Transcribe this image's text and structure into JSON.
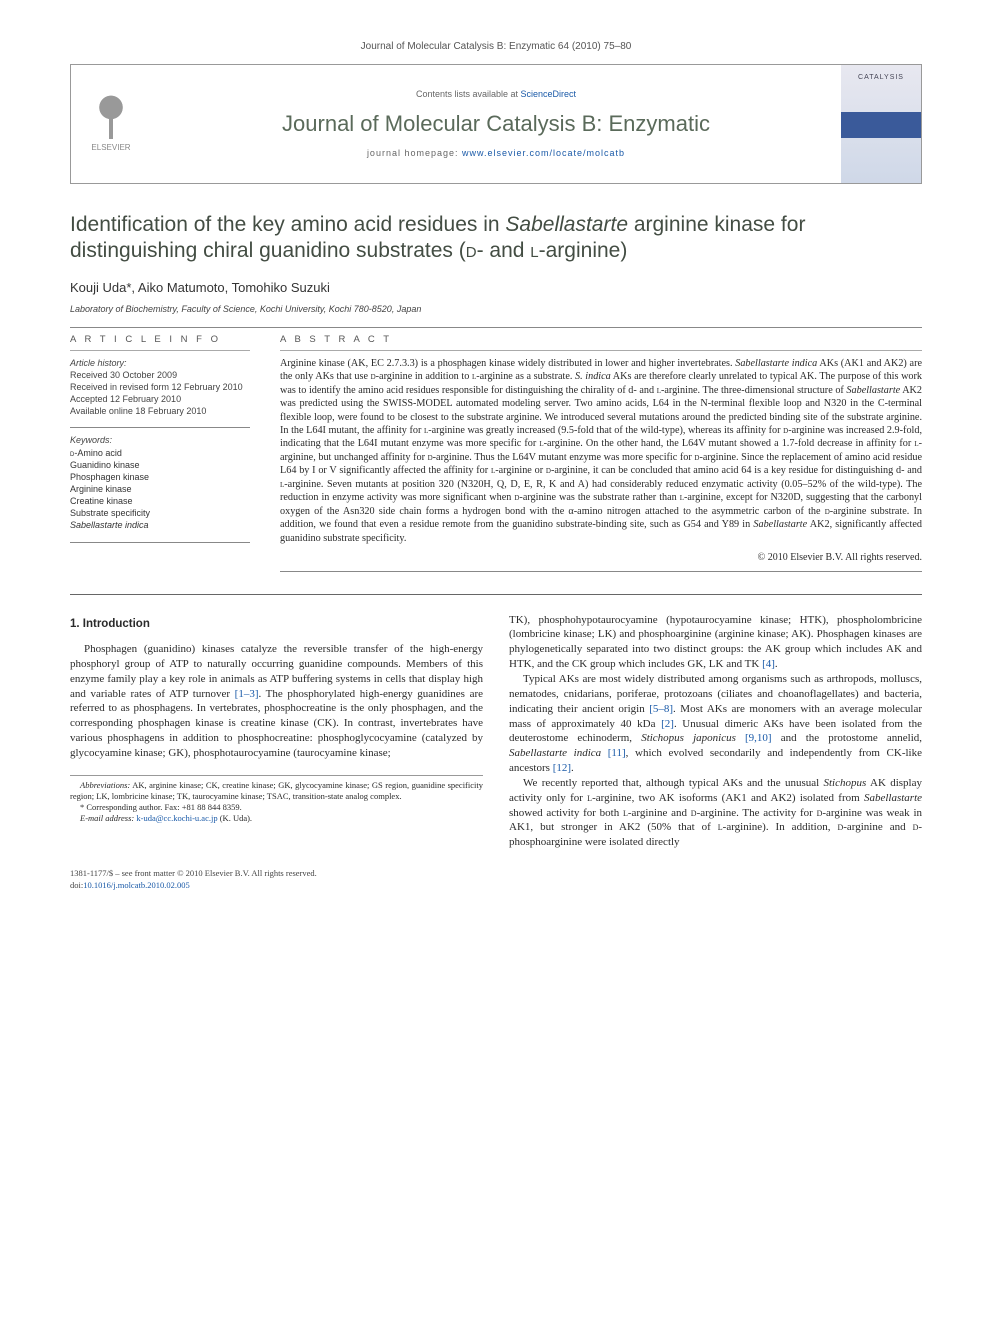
{
  "meta": {
    "running_head": "Journal of Molecular Catalysis B: Enzymatic 64 (2010) 75–80",
    "contents_prefix": "Contents lists available at ",
    "contents_link": "ScienceDirect",
    "journal_title": "Journal of Molecular Catalysis B: Enzymatic",
    "homepage_prefix": "journal homepage: ",
    "homepage_url": "www.elsevier.com/locate/molcatb",
    "elsevier": "ELSEVIER",
    "cover_label": "CATALYSIS"
  },
  "title": {
    "line1": "Identification of the key amino acid residues in ",
    "italic1": "Sabellastarte",
    "line2": " arginine kinase for distinguishing chiral guanidino substrates (",
    "sc1": "d",
    "line3": "- and ",
    "sc2": "l",
    "line4": "-arginine)"
  },
  "authors": "Kouji Uda*, Aiko Matumoto, Tomohiko Suzuki",
  "affiliation": "Laboratory of Biochemistry, Faculty of Science, Kochi University, Kochi 780-8520, Japan",
  "info": {
    "heading": "A R T I C L E   I N F O",
    "hist_label": "Article history:",
    "hist": [
      "Received 30 October 2009",
      "Received in revised form 12 February 2010",
      "Accepted 12 February 2010",
      "Available online 18 February 2010"
    ],
    "kw_label": "Keywords:",
    "keywords": [
      "d-Amino acid",
      "Guanidino kinase",
      "Phosphagen kinase",
      "Arginine kinase",
      "Creatine kinase",
      "Substrate specificity",
      "Sabellastarte indica"
    ]
  },
  "abstract": {
    "heading": "A B S T R A C T",
    "text": "Arginine kinase (AK, EC 2.7.3.3) is a phosphagen kinase widely distributed in lower and higher invertebrates. Sabellastarte indica AKs (AK1 and AK2) are the only AKs that use d-arginine in addition to l-arginine as a substrate. S. indica AKs are therefore clearly unrelated to typical AK. The purpose of this work was to identify the amino acid residues responsible for distinguishing the chirality of d- and l-arginine. The three-dimensional structure of Sabellastarte AK2 was predicted using the SWISS-MODEL automated modeling server. Two amino acids, L64 in the N-terminal flexible loop and N320 in the C-terminal flexible loop, were found to be closest to the substrate arginine. We introduced several mutations around the predicted binding site of the substrate arginine. In the L64I mutant, the affinity for l-arginine was greatly increased (9.5-fold that of the wild-type), whereas its affinity for d-arginine was increased 2.9-fold, indicating that the L64I mutant enzyme was more specific for l-arginine. On the other hand, the L64V mutant showed a 1.7-fold decrease in affinity for l-arginine, but unchanged affinity for d-arginine. Thus the L64V mutant enzyme was more specific for d-arginine. Since the replacement of amino acid residue L64 by I or V significantly affected the affinity for l-arginine or d-arginine, it can be concluded that amino acid 64 is a key residue for distinguishing d- and l-arginine. Seven mutants at position 320 (N320H, Q, D, E, R, K and A) had considerably reduced enzymatic activity (0.05–52% of the wild-type). The reduction in enzyme activity was more significant when d-arginine was the substrate rather than l-arginine, except for N320D, suggesting that the carbonyl oxygen of the Asn320 side chain forms a hydrogen bond with the α-amino nitrogen attached to the asymmetric carbon of the d-arginine substrate. In addition, we found that even a residue remote from the guanidino substrate-binding site, such as G54 and Y89 in Sabellastarte AK2, significantly affected guanidino substrate specificity.",
    "copyright": "© 2010 Elsevier B.V. All rights reserved."
  },
  "body": {
    "section1_heading": "1. Introduction",
    "p1": "Phosphagen (guanidino) kinases catalyze the reversible transfer of the high-energy phosphoryl group of ATP to naturally occurring guanidine compounds. Members of this enzyme family play a key role in animals as ATP buffering systems in cells that display high and variable rates of ATP turnover [1–3]. The phosphorylated high-energy guanidines are referred to as phosphagens. In vertebrates, phosphocreatine is the only phosphagen, and the corresponding phosphagen kinase is creatine kinase (CK). In contrast, invertebrates have various phosphagens in addition to phosphocreatine: phosphoglycocyamine (catalyzed by glycocyamine kinase; GK), phosphotaurocyamine (taurocyamine kinase;",
    "p2": "TK), phosphohypotaurocyamine (hypotaurocyamine kinase; HTK), phospholombricine (lombricine kinase; LK) and phosphoarginine (arginine kinase; AK). Phosphagen kinases are phylogenetically separated into two distinct groups: the AK group which includes AK and HTK, and the CK group which includes GK, LK and TK [4].",
    "p3": "Typical AKs are most widely distributed among organisms such as arthropods, molluscs, nematodes, cnidarians, poriferae, protozoans (ciliates and choanoflagellates) and bacteria, indicating their ancient origin [5–8]. Most AKs are monomers with an average molecular mass of approximately 40 kDa [2]. Unusual dimeric AKs have been isolated from the deuterostome echinoderm, Stichopus japonicus [9,10] and the protostome annelid, Sabellastarte indica [11], which evolved secondarily and independently from CK-like ancestors [12].",
    "p4": "We recently reported that, although typical AKs and the unusual Stichopus AK display activity only for l-arginine, two AK isoforms (AK1 and AK2) isolated from Sabellastarte showed activity for both l-arginine and d-arginine. The activity for d-arginine was weak in AK1, but stronger in AK2 (50% that of l-arginine). In addition, d-arginine and d-phosphoarginine were isolated directly"
  },
  "footnotes": {
    "abbrev_label": "Abbreviations:",
    "abbrev": " AK, arginine kinase; CK, creatine kinase; GK, glycocyamine kinase; GS region, guanidine specificity region; LK, lombricine kinase; TK, taurocyamine kinase; TSAC, transition-state analog complex.",
    "corr_label": "* Corresponding author. Fax: +81 88 844 8359.",
    "email_label": "E-mail address: ",
    "email": "k-uda@cc.kochi-u.ac.jp",
    "email_suffix": " (K. Uda)."
  },
  "footer": {
    "issn": "1381-1177/$ – see front matter © 2010 Elsevier B.V. All rights reserved.",
    "doi_label": "doi:",
    "doi": "10.1016/j.molcatb.2010.02.005"
  },
  "refs": {
    "r1_3": "[1–3]",
    "r4": "[4]",
    "r5_8": "[5–8]",
    "r2": "[2]",
    "r9_10": "[9,10]",
    "r11": "[11]",
    "r12": "[12]"
  },
  "colors": {
    "link": "#1a5aa8",
    "rule": "#888888",
    "text": "#2a2a2a",
    "journal_title": "#5a6a5a"
  }
}
